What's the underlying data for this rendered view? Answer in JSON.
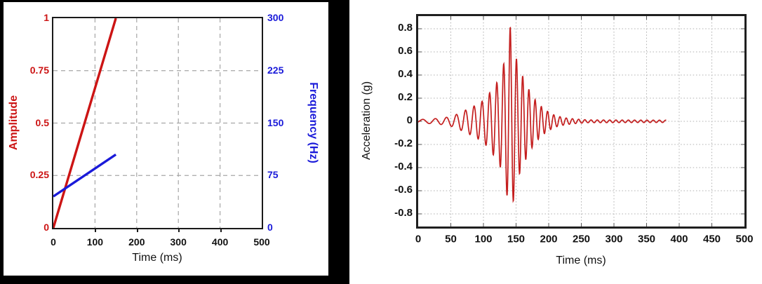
{
  "page": {
    "background": "#ffffff",
    "left_panel_frame_color": "#000000"
  },
  "chart_data": [
    {
      "type": "line",
      "panel": "left",
      "title": "",
      "x_label": "Time (ms)",
      "x_range": [
        0,
        500
      ],
      "x_ticks": [
        0,
        100,
        200,
        300,
        400,
        500
      ],
      "grid": "dashed",
      "grid_color": "#a6a6a6",
      "left_axis": {
        "label": "Amplitude",
        "color": "#cc1414",
        "range": [
          0,
          1
        ],
        "ticks": [
          0,
          0.25,
          0.5,
          0.75,
          1
        ],
        "tick_labels": [
          "0",
          "0.25",
          "0.5",
          "0.75",
          "1"
        ]
      },
      "right_axis": {
        "label": "Frequency (Hz)",
        "color": "#1a1ad9",
        "range": [
          0,
          300
        ],
        "ticks": [
          0,
          75,
          150,
          225,
          300
        ],
        "tick_labels": [
          "0",
          "75",
          "150",
          "225",
          "300"
        ]
      },
      "series": [
        {
          "name": "amplitude-ramp",
          "axis": "left",
          "color": "#cc1414",
          "points": [
            [
              0,
              0
            ],
            [
              150,
              1
            ]
          ]
        },
        {
          "name": "frequency-ramp",
          "axis": "right",
          "color": "#1a1ad9",
          "points": [
            [
              0,
              45
            ],
            [
              150,
              105
            ]
          ]
        }
      ]
    },
    {
      "type": "line",
      "panel": "right",
      "title": "",
      "x_label": "Time (ms)",
      "y_label": "Acceleration (g)",
      "x_range": [
        0,
        500
      ],
      "x_ticks": [
        0,
        50,
        100,
        150,
        200,
        250,
        300,
        350,
        400,
        450,
        500
      ],
      "y_range": [
        -0.9,
        0.9
      ],
      "y_ticks": [
        0.8,
        0.6,
        0.4,
        0.2,
        0,
        -0.2,
        -0.4,
        -0.6,
        -0.8
      ],
      "y_tick_labels": [
        "0.8",
        "0.6",
        "0.4",
        "0.2",
        "0",
        "-0.2",
        "-0.4",
        "-0.6",
        "-0.8"
      ],
      "grid": "dotted",
      "grid_color": "#b3b3b3",
      "series": [
        {
          "name": "acceleration-time-history",
          "color": "#c41e1e",
          "signal": {
            "kind": "windowed-chirp",
            "freq_start_hz": 45,
            "freq_end_hz": 105,
            "freq_ramp_end_ms": 150,
            "phase_offset_cycles": 0.93,
            "duration_ms": 380,
            "peak": {
              "t_ms": 141,
              "value_g": 0.82
            },
            "trough": {
              "t_ms": 144,
              "value_g": -0.75
            },
            "envelope_points": [
              [
                0,
                0.015
              ],
              [
                20,
                0.02
              ],
              [
                40,
                0.03
              ],
              [
                55,
                0.05
              ],
              [
                70,
                0.09
              ],
              [
                85,
                0.13
              ],
              [
                100,
                0.18
              ],
              [
                110,
                0.25
              ],
              [
                120,
                0.33
              ],
              [
                128,
                0.42
              ],
              [
                133,
                0.55
              ],
              [
                138,
                0.7
              ],
              [
                141,
                0.82
              ],
              [
                144,
                0.75
              ],
              [
                148,
                0.62
              ],
              [
                152,
                0.5
              ],
              [
                158,
                0.42
              ],
              [
                165,
                0.33
              ],
              [
                172,
                0.25
              ],
              [
                180,
                0.18
              ],
              [
                190,
                0.12
              ],
              [
                200,
                0.08
              ],
              [
                210,
                0.05
              ],
              [
                225,
                0.03
              ],
              [
                240,
                0.02
              ],
              [
                260,
                0.012
              ],
              [
                380,
                0.01
              ]
            ]
          }
        }
      ]
    }
  ]
}
